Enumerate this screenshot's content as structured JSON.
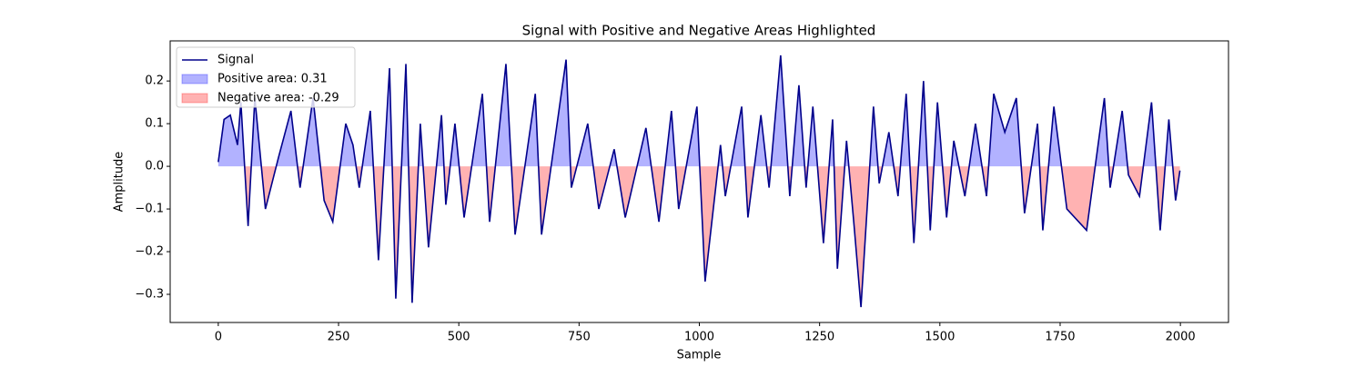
{
  "chart_data": {
    "type": "line",
    "title": "Signal with Positive and Negative Areas Highlighted",
    "x_label": "Sample",
    "y_label": "Amplitude",
    "x": [
      0,
      12,
      25,
      40,
      47,
      62,
      76,
      98,
      125,
      151,
      170,
      197,
      220,
      238,
      265,
      280,
      293,
      316,
      333,
      356,
      369,
      390,
      403,
      420,
      437,
      464,
      473,
      492,
      511,
      549,
      564,
      598,
      617,
      659,
      672,
      723,
      734,
      768,
      791,
      823,
      846,
      889,
      916,
      942,
      957,
      995,
      1012,
      1044,
      1054,
      1088,
      1101,
      1128,
      1145,
      1169,
      1188,
      1207,
      1222,
      1236,
      1258,
      1277,
      1287,
      1306,
      1321,
      1336,
      1362,
      1374,
      1394,
      1413,
      1430,
      1446,
      1466,
      1480,
      1495,
      1514,
      1529,
      1552,
      1574,
      1597,
      1612,
      1635,
      1659,
      1676,
      1703,
      1714,
      1737,
      1764,
      1805,
      1842,
      1854,
      1879,
      1892,
      1915,
      1940,
      1958,
      1976,
      1990,
      1999
    ],
    "series": [
      {
        "name": "Signal",
        "color": "#00008b",
        "values": [
          0.01,
          0.11,
          0.12,
          0.05,
          0.15,
          -0.14,
          0.16,
          -0.1,
          0.02,
          0.13,
          -0.05,
          0.16,
          -0.08,
          -0.13,
          0.1,
          0.05,
          -0.05,
          0.13,
          -0.22,
          0.23,
          -0.31,
          0.24,
          -0.32,
          0.1,
          -0.19,
          0.12,
          -0.09,
          0.1,
          -0.12,
          0.17,
          -0.13,
          0.24,
          -0.16,
          0.17,
          -0.16,
          0.25,
          -0.05,
          0.1,
          -0.1,
          0.04,
          -0.12,
          0.09,
          -0.13,
          0.13,
          -0.1,
          0.14,
          -0.27,
          0.05,
          -0.07,
          0.14,
          -0.12,
          0.12,
          -0.05,
          0.26,
          -0.07,
          0.19,
          -0.05,
          0.14,
          -0.18,
          0.11,
          -0.24,
          0.06,
          -0.13,
          -0.33,
          0.14,
          -0.04,
          0.08,
          -0.07,
          0.17,
          -0.18,
          0.2,
          -0.15,
          0.15,
          -0.12,
          0.06,
          -0.07,
          0.1,
          -0.07,
          0.17,
          0.08,
          0.16,
          -0.11,
          0.1,
          -0.15,
          0.14,
          -0.1,
          -0.15,
          0.16,
          -0.05,
          0.13,
          -0.02,
          -0.07,
          0.15,
          -0.15,
          0.11,
          -0.08,
          -0.01
        ]
      }
    ],
    "fills": [
      {
        "name": "Positive area: 0.31",
        "color": "#0000ff"
      },
      {
        "name": "Negative area: -0.29",
        "color": "#ff0000"
      }
    ],
    "xlim": [
      -100,
      2100
    ],
    "ylim": [
      -0.366,
      0.294
    ],
    "xticks": [
      0,
      250,
      500,
      750,
      1000,
      1250,
      1500,
      1750,
      2000
    ],
    "yticks": [
      {
        "value": -0.3,
        "label": "−0.3"
      },
      {
        "value": -0.2,
        "label": "−0.2"
      },
      {
        "value": -0.1,
        "label": "−0.1"
      },
      {
        "value": 0,
        "label": "0.0"
      },
      0.1,
      0.2
    ],
    "legend": "upper left"
  }
}
